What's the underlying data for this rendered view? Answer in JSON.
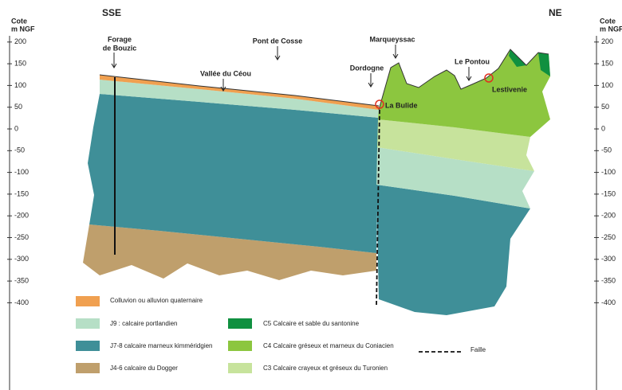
{
  "axis": {
    "title_line1": "Cote",
    "title_line2": "m NGF",
    "ticks": [
      200,
      150,
      100,
      50,
      0,
      -50,
      -100,
      -150,
      -200,
      -250,
      -300,
      -350,
      -400
    ]
  },
  "directions": {
    "left": "SSE",
    "right": "NE"
  },
  "places": {
    "forage_line1": "Forage",
    "forage_line2": "de Bouzic",
    "pont": "Pont de Cosse",
    "vallee": "Vallée du Céou",
    "marqueyssac": "Marqueyssac",
    "dordogne": "Dordogne",
    "pontou": "Le Pontou",
    "lestivenie": "Lestivenie",
    "bulide": "La Bulide"
  },
  "legend": {
    "colluvion": "Colluvion ou alluvion quaternaire",
    "j9": "J9 : calcaire portlandien",
    "j78": "J7-8 calcaire marneux kimméridgien",
    "j46": "J4-6 calcaire du Dogger",
    "c5": "C5 Calcaire et sable du santonine",
    "c4": "C4 Calcaire gréseux et marneux du Coniacien",
    "c3": "C3 Calcaire crayeux et gréseux du Turonien",
    "faille": "Faille"
  }
}
